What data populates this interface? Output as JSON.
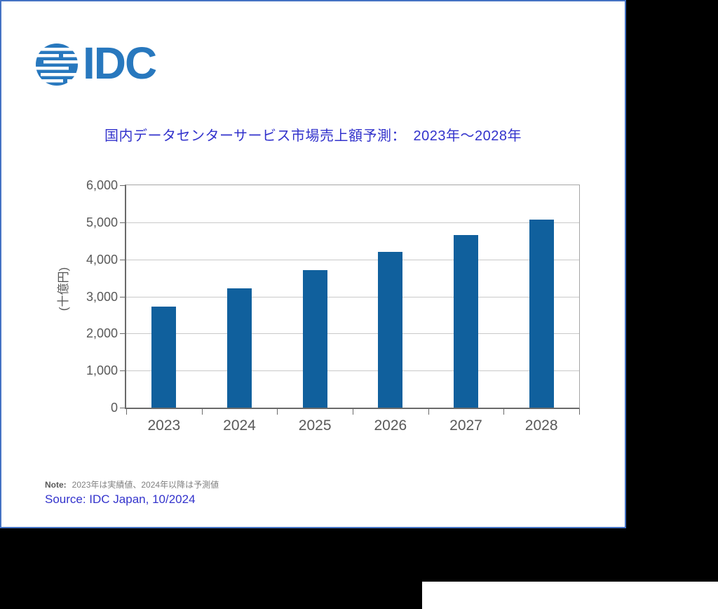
{
  "page": {
    "outer_background": "#000000",
    "card_background": "#FFFFFF",
    "card_border_color": "#4472C4"
  },
  "logo": {
    "text": "IDC",
    "color": "#2878BE"
  },
  "title": {
    "text": "国内データセンターサービス市場売上額予測：　2023年～2028年",
    "color": "#3333CC"
  },
  "chart_data": {
    "type": "bar",
    "title": "国内データセンターサービス市場売上額予測： 2023年～2028年",
    "categories": [
      "2023",
      "2024",
      "2025",
      "2026",
      "2027",
      "2028"
    ],
    "values": [
      2720,
      3215,
      3715,
      4210,
      4655,
      5070
    ],
    "xlabel": "",
    "ylabel": "(十億円)",
    "ylim": [
      0,
      6000
    ],
    "ytick_interval": 1000,
    "ytick_labels": [
      "0",
      "1,000",
      "2,000",
      "3,000",
      "4,000",
      "5,000",
      "6,000"
    ],
    "bar_color": "#10609D",
    "gridline_color": "#C9C9C9",
    "axis_text_color": "#595959",
    "grid": true,
    "legend": "none"
  },
  "footer": {
    "note_label": "Note:",
    "note_text": "2023年は実績値、2024年以降は予測値",
    "source_text": "Source: IDC Japan, 10/2024"
  }
}
